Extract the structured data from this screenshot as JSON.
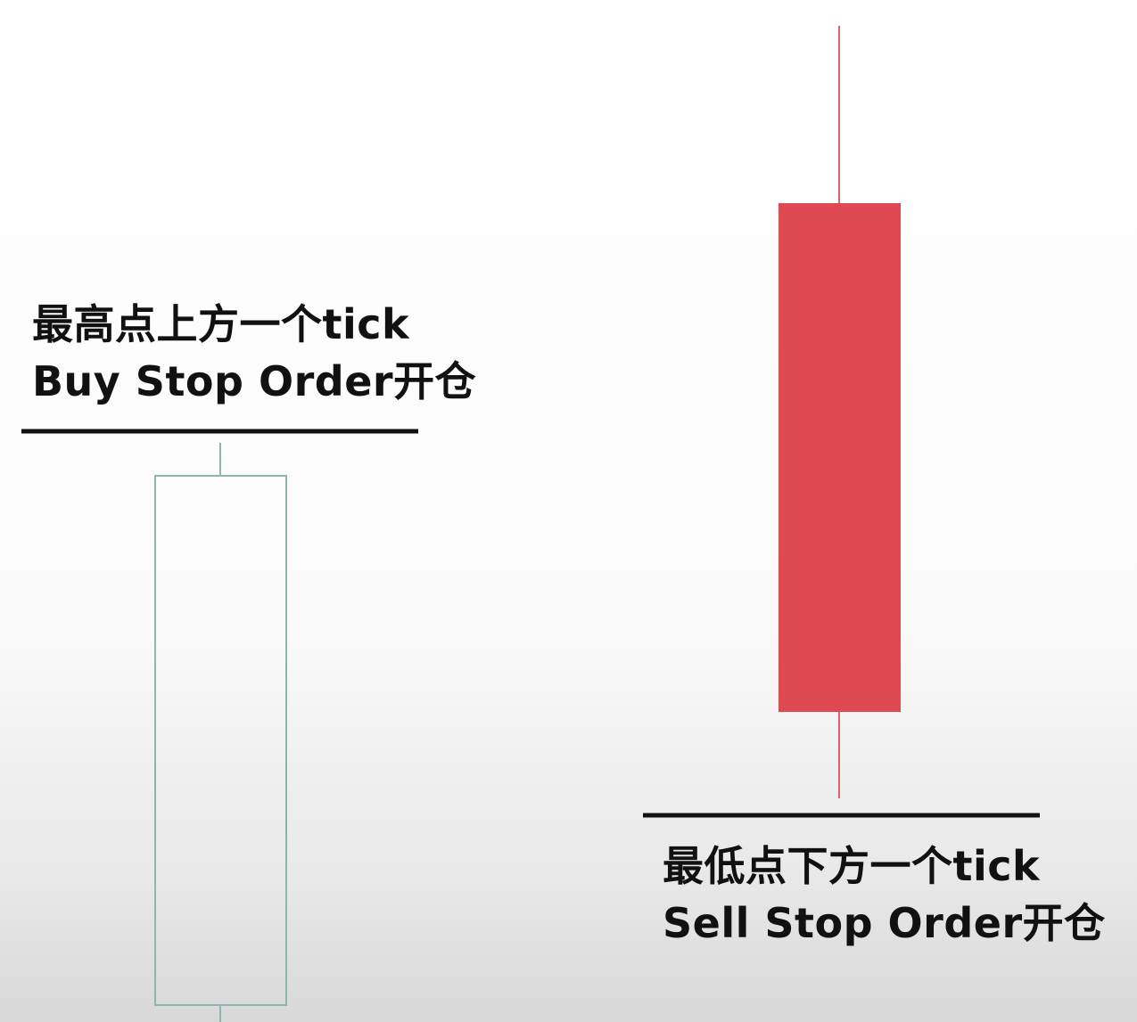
{
  "annotations": {
    "buy": {
      "line1": "最高点上方一个tick",
      "line2": "Buy Stop Order开仓"
    },
    "sell": {
      "line1": "最低点下方一个tick",
      "line2": "Sell Stop Order开仓"
    }
  },
  "colors": {
    "bullish_outline": "#8fb5b0",
    "bearish_fill": "#df4a52",
    "bearish_wick": "#d9646a",
    "stop_line": "#111111"
  }
}
